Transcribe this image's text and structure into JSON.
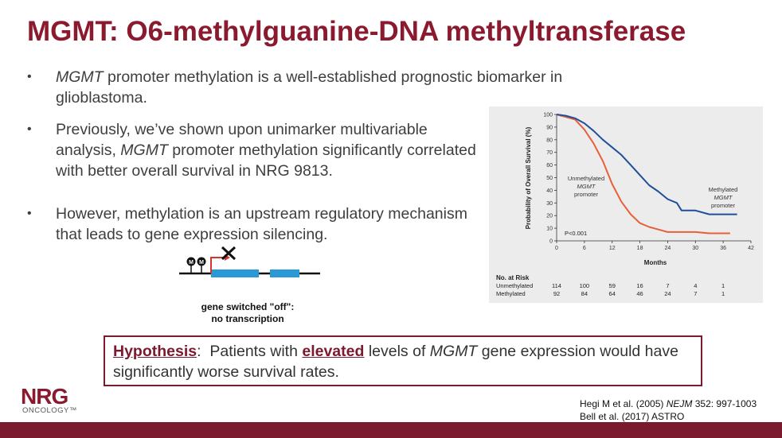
{
  "title": "MGMT: O6-methylguanine-DNA methyltransferase",
  "bullets": [
    {
      "marker": "•",
      "italic": "MGMT",
      "text": " promoter methylation is a well-established prognostic biomarker in glioblastoma."
    },
    {
      "marker": "•",
      "pre": "Previously, we’ve shown upon unimarker multivariable analysis, ",
      "italic": "MGMT",
      "post": " promoter methylation significantly correlated with better overall survival in NRG 9813."
    },
    {
      "marker": "•",
      "text": "However, methylation is an upstream regulatory mechanism that leads to gene expression silencing."
    }
  ],
  "gene_diagram": {
    "methyl_label": "M",
    "caption_line1": "gene switched \"off\":",
    "caption_line2": "no transcription",
    "colors": {
      "exon": "#2a9ad6",
      "promoter_arrow": "#d8352a",
      "line": "#111111"
    }
  },
  "km_plot": {
    "ylabel": "Probability of Overall Survival (%)",
    "xlabel": "Months",
    "yticks": [
      "0",
      "10",
      "20",
      "30",
      "40",
      "50",
      "60",
      "70",
      "80",
      "90",
      "100"
    ],
    "xticks": [
      "0",
      "6",
      "12",
      "18",
      "24",
      "30",
      "36",
      "42"
    ],
    "curve_labels": {
      "unmethylated": [
        "Unmethylated",
        "MGMT",
        "promoter"
      ],
      "methylated": [
        "Methylated",
        "MGMT",
        "promoter"
      ]
    },
    "pvalue": "P<0.001",
    "risk_title": "No. at Risk",
    "risk_rows": [
      {
        "label": "Unmethylated",
        "values": [
          "114",
          "100",
          "59",
          "16",
          "7",
          "4",
          "1"
        ]
      },
      {
        "label": "Methylated",
        "values": [
          "92",
          "84",
          "64",
          "46",
          "24",
          "7",
          "1"
        ]
      }
    ],
    "colors": {
      "unmethylated": "#e8603a",
      "methylated": "#1f4f9a"
    }
  },
  "chart_data": {
    "type": "line",
    "xlabel": "Months",
    "ylabel": "Probability of Overall Survival (%)",
    "xlim": [
      0,
      42
    ],
    "ylim": [
      0,
      100
    ],
    "series": [
      {
        "name": "Unmethylated MGMT promoter",
        "x": [
          0,
          2,
          4,
          6,
          8,
          10,
          12,
          14,
          16,
          18,
          20,
          22,
          24,
          27,
          30,
          33,
          36,
          37.5
        ],
        "y": [
          100,
          98,
          96,
          88,
          77,
          63,
          45,
          31,
          21,
          14,
          11,
          9,
          7,
          7,
          7,
          6,
          6,
          6
        ]
      },
      {
        "name": "Methylated MGMT promoter",
        "x": [
          0,
          2,
          4,
          6,
          8,
          10,
          12,
          14,
          16,
          18,
          20,
          22,
          24,
          26,
          27,
          30,
          33,
          36,
          39
        ],
        "y": [
          100,
          99,
          97,
          93,
          87,
          80,
          74,
          68,
          60,
          52,
          44,
          39,
          33,
          30,
          24,
          24,
          21,
          21,
          21
        ]
      }
    ]
  },
  "hypothesis": {
    "label": "Hypothesis",
    "colon": ":",
    "pre": "  Patients with ",
    "emph": "elevated",
    "mid": " levels of ",
    "italic": "MGMT",
    "post": " gene expression would have significantly worse survival rates."
  },
  "logo": {
    "name": "NRG",
    "subtitle": "ONCOLOGY™"
  },
  "references": {
    "ref1_pre": "Hegi M et al. (2005) ",
    "ref1_journal": "NEJM",
    "ref1_post": " 352: 997-1003",
    "ref2": "Bell et al. (2017) ASTRO"
  },
  "colors": {
    "brand": "#8b1a2f"
  }
}
